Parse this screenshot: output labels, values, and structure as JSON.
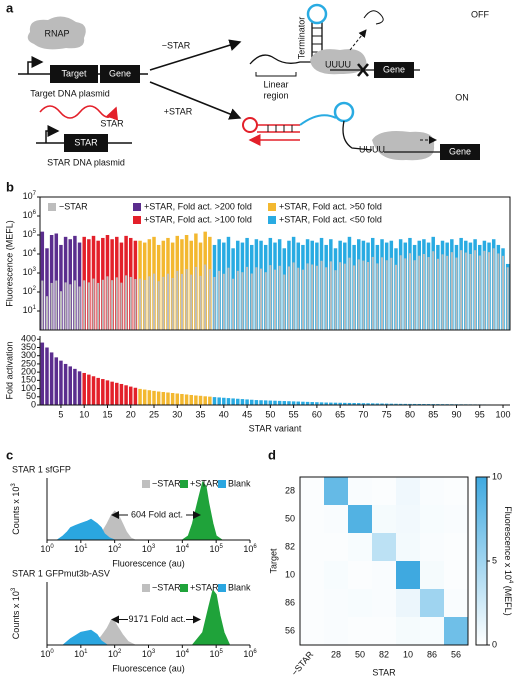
{
  "panel_a": {
    "label": "a",
    "rnap": "RNAP",
    "minus_star": "−STAR",
    "plus_star": "+STAR",
    "target": "Target",
    "gene": "Gene",
    "target_plasmid": "Target DNA plasmid",
    "star_rna": "STAR",
    "star_gene": "STAR",
    "star_plasmid": "STAR DNA plasmid",
    "terminator": "Terminator",
    "linear_region": [
      "Linear",
      "region"
    ],
    "uuuu_off": "UUUU",
    "gene_off": "Gene",
    "off": "OFF",
    "on": "ON",
    "uuuu_on": "UUUU",
    "gene_on": "Gene"
  },
  "panel_labels": {
    "b": "b",
    "c": "c",
    "d": "d"
  },
  "chart_data": [
    {
      "type": "bar",
      "log_y": true,
      "ylabel": "Fluorescence (MEFL)",
      "legend": "top",
      "xlim": [
        0.5,
        101.5
      ],
      "ylim": [
        1,
        10000000
      ],
      "yticks": [
        {
          "value": 10,
          "label": "10",
          "sup": "1"
        },
        {
          "value": 100,
          "label": "10",
          "sup": "2"
        },
        {
          "value": 1000,
          "label": "10",
          "sup": "3"
        },
        {
          "value": 10000,
          "label": "10",
          "sup": "4"
        },
        {
          "value": 100000,
          "label": "10",
          "sup": "5"
        },
        {
          "value": 1000000,
          "label": "10",
          "sup": "6"
        },
        {
          "value": 10000000,
          "label": "10",
          "sup": "7"
        }
      ],
      "series": [
        {
          "name": "−STAR",
          "color": "#bdbdbd",
          "x": [
            1,
            2,
            3,
            4,
            5,
            6,
            7,
            8,
            9,
            10,
            11,
            12,
            13,
            14,
            15,
            16,
            17,
            18,
            19,
            20,
            21,
            22,
            23,
            24,
            25,
            26,
            27,
            28,
            29,
            30,
            31,
            32,
            33,
            34,
            35,
            36,
            37,
            38,
            39,
            40,
            41,
            42,
            43,
            44,
            45,
            46,
            47,
            48,
            49,
            50,
            51,
            52,
            53,
            54,
            55,
            56,
            57,
            58,
            59,
            60,
            61,
            62,
            63,
            64,
            65,
            66,
            67,
            68,
            69,
            70,
            71,
            72,
            73,
            74,
            75,
            76,
            77,
            78,
            79,
            80,
            81,
            82,
            83,
            84,
            85,
            86,
            87,
            88,
            89,
            90,
            91,
            92,
            93,
            94,
            95,
            96,
            97,
            98,
            99,
            100,
            101
          ],
          "values": [
            400,
            60,
            300,
            400,
            110,
            320,
            255,
            410,
            195,
            410,
            320,
            510,
            300,
            440,
            670,
            420,
            590,
            310,
            750,
            620,
            480,
            510,
            430,
            670,
            930,
            370,
            630,
            920,
            550,
            1300,
            900,
            1600,
            820,
            2100,
            710,
            2800,
            1600,
            620,
            1300,
            910,
            1900,
            500,
            1300,
            1100,
            2100,
            940,
            2000,
            1700,
            1100,
            2600,
            1500,
            2400,
            830,
            2200,
            3600,
            1900,
            1500,
            3200,
            2800,
            2400,
            4400,
            2000,
            4100,
            1400,
            3700,
            3100,
            6400,
            2500,
            5200,
            4500,
            3800,
            7000,
            3200,
            6700,
            4700,
            6300,
            2700,
            8600,
            5900,
            11000,
            4700,
            8100,
            10000,
            6900,
            14000,
            5600,
            9600,
            8000,
            12500,
            6500,
            15900,
            11900,
            10000,
            15800,
            8300,
            14700,
            12500,
            20000,
            10700,
            8000,
            2000
          ]
        },
        {
          "name": "+STAR, Fold act. >200 fold",
          "color": "#5b2d8e",
          "x": [
            1,
            2,
            3,
            4,
            5,
            6,
            7,
            8,
            9
          ],
          "values": [
            150000,
            20000,
            100000,
            120000,
            30000,
            80000,
            60000,
            90000,
            40000
          ]
        },
        {
          "name": "+STAR, Fold act. >100 fold",
          "color": "#e3202a",
          "x": [
            10,
            11,
            12,
            13,
            14,
            15,
            16,
            17,
            18,
            19,
            20,
            21
          ],
          "values": [
            80000,
            60000,
            90000,
            50000,
            70000,
            100000,
            60000,
            80000,
            40000,
            90000,
            70000,
            50000
          ]
        },
        {
          "name": "+STAR, Fold act. >50 fold",
          "color": "#f3b830",
          "x": [
            22,
            23,
            24,
            25,
            26,
            27,
            28,
            29,
            30,
            31,
            32,
            33,
            34,
            35,
            36,
            37
          ],
          "values": [
            50000,
            40000,
            60000,
            80000,
            30000,
            50000,
            70000,
            40000,
            90000,
            60000,
            100000,
            50000,
            120000,
            40000,
            150000,
            80000
          ]
        },
        {
          "name": "+STAR, Fold act. <50 fold",
          "color": "#29abe2",
          "x": [
            38,
            39,
            40,
            41,
            42,
            43,
            44,
            45,
            46,
            47,
            48,
            49,
            50,
            51,
            52,
            53,
            54,
            55,
            56,
            57,
            58,
            59,
            60,
            61,
            62,
            63,
            64,
            65,
            66,
            67,
            68,
            69,
            70,
            71,
            72,
            73,
            74,
            75,
            76,
            77,
            78,
            79,
            80,
            81,
            82,
            83,
            84,
            85,
            86,
            87,
            88,
            89,
            90,
            91,
            92,
            93,
            94,
            95,
            96,
            97,
            98,
            99,
            100,
            101
          ],
          "values": [
            30000,
            60000,
            40000,
            80000,
            20000,
            50000,
            40000,
            70000,
            30000,
            60000,
            50000,
            30000,
            70000,
            40000,
            60000,
            20000,
            50000,
            80000,
            40000,
            30000,
            60000,
            50000,
            40000,
            70000,
            30000,
            60000,
            20000,
            50000,
            40000,
            80000,
            30000,
            60000,
            50000,
            40000,
            70000,
            30000,
            60000,
            40000,
            50000,
            20000,
            60000,
            40000,
            70000,
            30000,
            50000,
            60000,
            40000,
            80000,
            30000,
            50000,
            40000,
            60000,
            30000,
            70000,
            50000,
            40000,
            60000,
            30000,
            50000,
            40000,
            60000,
            30000,
            20000,
            3000
          ]
        }
      ]
    },
    {
      "type": "bar",
      "ylabel": "Fold activation",
      "xlabel": "STAR variant",
      "xlim": [
        0.5,
        101.5
      ],
      "ylim": [
        0,
        420
      ],
      "xticks": [
        5,
        10,
        15,
        20,
        25,
        30,
        35,
        40,
        45,
        50,
        55,
        60,
        65,
        70,
        75,
        80,
        85,
        90,
        95,
        100
      ],
      "yticks": [
        0,
        50,
        100,
        150,
        200,
        250,
        300,
        350,
        400
      ],
      "series": [
        {
          "color": "#5b2d8e",
          "x": [
            1,
            2,
            3,
            4,
            5,
            6,
            7,
            8,
            9
          ],
          "values": [
            380,
            350,
            320,
            290,
            270,
            250,
            235,
            220,
            205
          ]
        },
        {
          "color": "#e3202a",
          "x": [
            10,
            11,
            12,
            13,
            14,
            15,
            16,
            17,
            18,
            19,
            20,
            21
          ],
          "values": [
            195,
            185,
            175,
            165,
            158,
            150,
            142,
            135,
            128,
            120,
            112,
            105
          ]
        },
        {
          "color": "#f3b830",
          "x": [
            22,
            23,
            24,
            25,
            26,
            27,
            28,
            29,
            30,
            31,
            32,
            33,
            34,
            35,
            36,
            37
          ],
          "values": [
            98,
            94,
            90,
            86,
            82,
            79,
            76,
            73,
            70,
            67,
            64,
            61,
            58,
            56,
            53,
            51
          ]
        },
        {
          "color": "#29abe2",
          "x": [
            38,
            39,
            40,
            41,
            42,
            43,
            44,
            45,
            46,
            47,
            48,
            49,
            50,
            51,
            52,
            53,
            54,
            55,
            56,
            57,
            58,
            59,
            60,
            61,
            62,
            63,
            64,
            65,
            66,
            67,
            68,
            69,
            70,
            71,
            72,
            73,
            74,
            75,
            76,
            77,
            78,
            79,
            80,
            81,
            82,
            83,
            84,
            85,
            86,
            87,
            88,
            89,
            90,
            91,
            92,
            93,
            94,
            95,
            96,
            97,
            98,
            99,
            100,
            101
          ],
          "values": [
            48,
            46,
            44,
            42,
            40,
            38,
            36,
            34,
            32,
            30,
            29,
            28,
            27,
            26,
            25,
            24,
            23,
            22,
            21,
            20,
            19,
            18,
            17,
            16,
            15,
            14.5,
            14,
            13.5,
            13,
            12.5,
            12,
            11.5,
            11,
            10.5,
            10,
            9.5,
            9,
            8.5,
            8,
            7.5,
            7,
            6.8,
            6.6,
            6.4,
            6.2,
            6,
            5.8,
            5.6,
            5.4,
            5.2,
            5,
            4.8,
            4.6,
            4.4,
            4.2,
            4,
            3.8,
            3.6,
            3.4,
            3.2,
            3,
            2.8,
            2.5,
            1.5
          ]
        }
      ]
    },
    {
      "type": "area",
      "title": "STAR 1 sfGFP",
      "log_x": true,
      "ylabel": [
        "Counts x 10",
        "3"
      ],
      "xlabel": "Fluorescence (au)",
      "annotation": "604 Fold act.",
      "xlim": [
        1,
        1000000
      ],
      "ylim": [
        0,
        1.5
      ],
      "xticks": [
        {
          "value": 1,
          "label": "10",
          "sup": "0"
        },
        {
          "value": 10,
          "label": "10",
          "sup": "1"
        },
        {
          "value": 100,
          "label": "10",
          "sup": "2"
        },
        {
          "value": 1000,
          "label": "10",
          "sup": "3"
        },
        {
          "value": 10000,
          "label": "10",
          "sup": "4"
        },
        {
          "value": 100000,
          "label": "10",
          "sup": "5"
        },
        {
          "value": 1000000,
          "label": "10",
          "sup": "6"
        }
      ],
      "series": [
        {
          "name": "−STAR",
          "color": "#bfbfbf",
          "x": [
            20,
            40,
            60,
            80,
            100,
            130,
            170,
            220,
            300,
            400
          ],
          "values": [
            0,
            0.15,
            0.4,
            0.6,
            0.7,
            0.6,
            0.4,
            0.2,
            0.05,
            0
          ]
        },
        {
          "name": "+STAR",
          "color": "#1fa33a",
          "x": [
            10000,
            15000,
            20000,
            30000,
            40000,
            50000,
            60000,
            80000,
            100000,
            150000
          ],
          "values": [
            0,
            0.1,
            0.4,
            1.0,
            1.4,
            1.3,
            0.9,
            0.4,
            0.1,
            0
          ]
        },
        {
          "name": "Blank",
          "color": "#2aa6e0",
          "x": [
            2,
            3,
            4,
            5,
            7,
            10,
            15,
            20,
            30,
            40,
            50,
            70,
            100
          ],
          "values": [
            0,
            0.1,
            0.2,
            0.3,
            0.35,
            0.4,
            0.45,
            0.5,
            0.4,
            0.3,
            0.15,
            0.05,
            0
          ]
        }
      ]
    },
    {
      "type": "area",
      "title": "STAR 1 GFPmut3b-ASV",
      "log_x": true,
      "ylabel": [
        "Counts x 10",
        "3"
      ],
      "xlabel": "Fluorescence (au)",
      "annotation": "9171 Fold act.",
      "xlim": [
        1,
        1000000
      ],
      "ylim": [
        0,
        1.5
      ],
      "xticks": [
        {
          "value": 1,
          "label": "10",
          "sup": "0"
        },
        {
          "value": 10,
          "label": "10",
          "sup": "1"
        },
        {
          "value": 100,
          "label": "10",
          "sup": "2"
        },
        {
          "value": 1000,
          "label": "10",
          "sup": "3"
        },
        {
          "value": 10000,
          "label": "10",
          "sup": "4"
        },
        {
          "value": 100000,
          "label": "10",
          "sup": "5"
        },
        {
          "value": 1000000,
          "label": "10",
          "sup": "6"
        }
      ],
      "series": [
        {
          "name": "−STAR",
          "color": "#bfbfbf",
          "x": [
            20,
            40,
            60,
            80,
            100,
            130,
            170,
            250,
            400
          ],
          "values": [
            0,
            0.2,
            0.4,
            0.6,
            0.55,
            0.4,
            0.25,
            0.08,
            0
          ]
        },
        {
          "name": "+STAR",
          "color": "#1fa33a",
          "x": [
            20000,
            40000,
            60000,
            80000,
            100000,
            130000,
            170000,
            250000
          ],
          "values": [
            0,
            0.3,
            0.9,
            1.3,
            1.2,
            0.7,
            0.3,
            0
          ]
        },
        {
          "name": "Blank",
          "color": "#2aa6e0",
          "x": [
            3,
            5,
            10,
            20,
            30,
            40,
            60
          ],
          "values": [
            0,
            0.15,
            0.3,
            0.35,
            0.25,
            0.1,
            0
          ]
        }
      ]
    },
    {
      "type": "heatmap",
      "xlabel": "STAR",
      "ylabel": "Target",
      "clabel": [
        "Fluorescence x 10",
        "4",
        " (MEFL)"
      ],
      "x_categories": [
        "−STAR",
        "28",
        "50",
        "82",
        "10",
        "86",
        "56"
      ],
      "y_categories": [
        "28",
        "50",
        "82",
        "10",
        "86",
        "56"
      ],
      "values": [
        [
          0.2,
          8,
          0.3,
          0.2,
          0.8,
          0.3,
          0.2
        ],
        [
          0.2,
          0.3,
          9,
          0.5,
          0.7,
          0.4,
          0.3
        ],
        [
          0.2,
          0.2,
          0.4,
          3.5,
          0.6,
          0.3,
          0.2
        ],
        [
          0.2,
          0.4,
          0.2,
          0.3,
          10,
          0.5,
          0.2
        ],
        [
          0.2,
          0.3,
          0.4,
          0.3,
          1,
          5,
          0.3
        ],
        [
          0.2,
          0.3,
          0.2,
          0.2,
          0.5,
          0.4,
          7.5
        ]
      ],
      "clim": [
        0,
        10
      ],
      "cticks": [
        0,
        5,
        10
      ],
      "colormap": [
        "#ffffff",
        "#3fa9e0"
      ]
    }
  ]
}
